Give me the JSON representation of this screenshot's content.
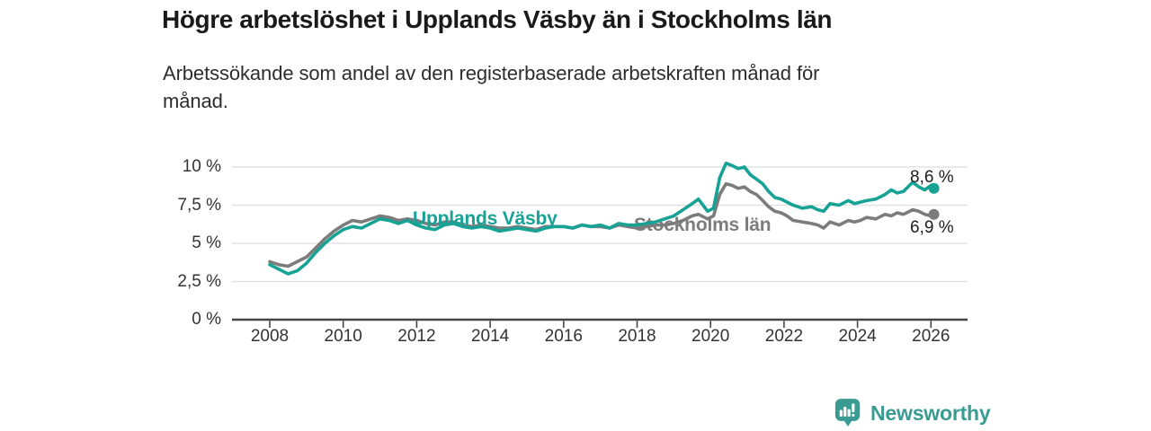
{
  "header": {
    "title": "Högre arbetslöshet i Upplands Väsby än i Stockholms län",
    "subtitle_lines": [
      "Arbetssökande som andel av den registerbaserade arbetskraften månad för",
      "månad."
    ]
  },
  "brand": {
    "name": "Newsworthy",
    "logo_color": "#3a9b93",
    "logo_icon": "bar-chart-speech-bubble"
  },
  "chart_data": {
    "type": "line",
    "title": "Högre arbetslöshet i Upplands Väsby än i Stockholms län",
    "subtitle": "Arbetssökande som andel av den registerbaserade arbetskraften månad för månad.",
    "unit": "%",
    "grid": true,
    "legend": "inline-labels",
    "xlabel": "",
    "ylabel": "",
    "x_range": [
      2007.0,
      2027.0
    ],
    "ylim": [
      0,
      10.6
    ],
    "x_tick_years": [
      2008,
      2010,
      2012,
      2014,
      2016,
      2018,
      2020,
      2022,
      2024,
      2026
    ],
    "x_tick_labels": [
      "2008",
      "2010",
      "2012",
      "2014",
      "2016",
      "2018",
      "2020",
      "2022",
      "2024",
      "2026"
    ],
    "y_tick_values": [
      0,
      2.5,
      5,
      7.5,
      10
    ],
    "y_tick_labels": [
      "0 %",
      "2,5 %",
      "5 %",
      "7,5 %",
      "10 %"
    ],
    "axis_color": "#454545",
    "grid_color": "#dedede",
    "series": [
      {
        "name": "Upplands Väsby",
        "color": "#17a296",
        "end_label": "8,6 %",
        "end_value": 8.6,
        "points": [
          [
            2008.0,
            3.6
          ],
          [
            2008.25,
            3.3
          ],
          [
            2008.5,
            3.0
          ],
          [
            2008.75,
            3.2
          ],
          [
            2009.0,
            3.7
          ],
          [
            2009.25,
            4.4
          ],
          [
            2009.5,
            5.0
          ],
          [
            2009.75,
            5.5
          ],
          [
            2010.0,
            5.9
          ],
          [
            2010.25,
            6.1
          ],
          [
            2010.5,
            6.0
          ],
          [
            2010.75,
            6.3
          ],
          [
            2011.0,
            6.6
          ],
          [
            2011.25,
            6.5
          ],
          [
            2011.5,
            6.3
          ],
          [
            2011.75,
            6.5
          ],
          [
            2012.0,
            6.2
          ],
          [
            2012.25,
            6.0
          ],
          [
            2012.5,
            5.9
          ],
          [
            2012.75,
            6.2
          ],
          [
            2013.0,
            6.3
          ],
          [
            2013.25,
            6.1
          ],
          [
            2013.5,
            6.0
          ],
          [
            2013.75,
            6.1
          ],
          [
            2014.0,
            6.0
          ],
          [
            2014.25,
            5.8
          ],
          [
            2014.5,
            5.9
          ],
          [
            2014.75,
            6.0
          ],
          [
            2015.0,
            5.9
          ],
          [
            2015.25,
            5.8
          ],
          [
            2015.5,
            6.0
          ],
          [
            2015.75,
            6.1
          ],
          [
            2016.0,
            6.1
          ],
          [
            2016.25,
            6.0
          ],
          [
            2016.5,
            6.2
          ],
          [
            2016.75,
            6.1
          ],
          [
            2017.0,
            6.2
          ],
          [
            2017.25,
            6.0
          ],
          [
            2017.5,
            6.3
          ],
          [
            2017.75,
            6.2
          ],
          [
            2018.0,
            6.2
          ],
          [
            2018.25,
            6.3
          ],
          [
            2018.5,
            6.4
          ],
          [
            2018.75,
            6.6
          ],
          [
            2019.0,
            6.8
          ],
          [
            2019.25,
            7.2
          ],
          [
            2019.5,
            7.6
          ],
          [
            2019.67,
            7.9
          ],
          [
            2019.92,
            7.1
          ],
          [
            2020.08,
            7.3
          ],
          [
            2020.25,
            9.3
          ],
          [
            2020.42,
            10.25
          ],
          [
            2020.58,
            10.1
          ],
          [
            2020.75,
            9.9
          ],
          [
            2020.92,
            10.0
          ],
          [
            2021.08,
            9.5
          ],
          [
            2021.25,
            9.2
          ],
          [
            2021.42,
            8.9
          ],
          [
            2021.58,
            8.4
          ],
          [
            2021.75,
            8.0
          ],
          [
            2021.92,
            7.9
          ],
          [
            2022.08,
            7.7
          ],
          [
            2022.25,
            7.5
          ],
          [
            2022.5,
            7.3
          ],
          [
            2022.75,
            7.4
          ],
          [
            2022.92,
            7.2
          ],
          [
            2023.08,
            7.1
          ],
          [
            2023.25,
            7.6
          ],
          [
            2023.5,
            7.5
          ],
          [
            2023.75,
            7.8
          ],
          [
            2023.92,
            7.6
          ],
          [
            2024.08,
            7.7
          ],
          [
            2024.25,
            7.8
          ],
          [
            2024.5,
            7.9
          ],
          [
            2024.75,
            8.2
          ],
          [
            2024.92,
            8.5
          ],
          [
            2025.08,
            8.3
          ],
          [
            2025.25,
            8.4
          ],
          [
            2025.5,
            9.0
          ],
          [
            2025.67,
            8.7
          ],
          [
            2025.83,
            8.5
          ],
          [
            2026.0,
            8.8
          ],
          [
            2026.08,
            8.6
          ]
        ]
      },
      {
        "name": "Stockholms län",
        "color": "#7c7c7c",
        "end_label": "6,9 %",
        "end_value": 6.9,
        "points": [
          [
            2008.0,
            3.8
          ],
          [
            2008.25,
            3.6
          ],
          [
            2008.5,
            3.5
          ],
          [
            2008.75,
            3.8
          ],
          [
            2009.0,
            4.1
          ],
          [
            2009.25,
            4.7
          ],
          [
            2009.5,
            5.3
          ],
          [
            2009.75,
            5.8
          ],
          [
            2010.0,
            6.2
          ],
          [
            2010.25,
            6.5
          ],
          [
            2010.5,
            6.4
          ],
          [
            2010.75,
            6.6
          ],
          [
            2011.0,
            6.8
          ],
          [
            2011.25,
            6.7
          ],
          [
            2011.5,
            6.5
          ],
          [
            2011.75,
            6.6
          ],
          [
            2012.0,
            6.5
          ],
          [
            2012.25,
            6.3
          ],
          [
            2012.5,
            6.2
          ],
          [
            2012.75,
            6.4
          ],
          [
            2013.0,
            6.4
          ],
          [
            2013.25,
            6.2
          ],
          [
            2013.5,
            6.1
          ],
          [
            2013.75,
            6.2
          ],
          [
            2014.0,
            6.1
          ],
          [
            2014.25,
            6.0
          ],
          [
            2014.5,
            6.0
          ],
          [
            2014.75,
            6.1
          ],
          [
            2015.0,
            6.0
          ],
          [
            2015.25,
            5.9
          ],
          [
            2015.5,
            6.1
          ],
          [
            2015.75,
            6.1
          ],
          [
            2016.0,
            6.1
          ],
          [
            2016.25,
            6.0
          ],
          [
            2016.5,
            6.2
          ],
          [
            2016.75,
            6.1
          ],
          [
            2017.0,
            6.1
          ],
          [
            2017.25,
            6.0
          ],
          [
            2017.5,
            6.2
          ],
          [
            2017.75,
            6.1
          ],
          [
            2018.0,
            6.0
          ],
          [
            2018.25,
            6.1
          ],
          [
            2018.5,
            6.2
          ],
          [
            2018.75,
            6.2
          ],
          [
            2019.0,
            6.3
          ],
          [
            2019.25,
            6.5
          ],
          [
            2019.5,
            6.8
          ],
          [
            2019.67,
            6.9
          ],
          [
            2019.92,
            6.6
          ],
          [
            2020.08,
            6.8
          ],
          [
            2020.25,
            8.2
          ],
          [
            2020.42,
            8.9
          ],
          [
            2020.58,
            8.8
          ],
          [
            2020.75,
            8.6
          ],
          [
            2020.92,
            8.7
          ],
          [
            2021.08,
            8.4
          ],
          [
            2021.25,
            8.2
          ],
          [
            2021.42,
            7.8
          ],
          [
            2021.58,
            7.4
          ],
          [
            2021.75,
            7.1
          ],
          [
            2021.92,
            7.0
          ],
          [
            2022.08,
            6.8
          ],
          [
            2022.25,
            6.5
          ],
          [
            2022.5,
            6.4
          ],
          [
            2022.75,
            6.3
          ],
          [
            2022.92,
            6.2
          ],
          [
            2023.08,
            6.0
          ],
          [
            2023.25,
            6.4
          ],
          [
            2023.5,
            6.2
          ],
          [
            2023.75,
            6.5
          ],
          [
            2023.92,
            6.4
          ],
          [
            2024.08,
            6.5
          ],
          [
            2024.25,
            6.7
          ],
          [
            2024.5,
            6.6
          ],
          [
            2024.75,
            6.9
          ],
          [
            2024.92,
            6.8
          ],
          [
            2025.08,
            7.0
          ],
          [
            2025.25,
            6.9
          ],
          [
            2025.5,
            7.2
          ],
          [
            2025.67,
            7.1
          ],
          [
            2025.83,
            6.9
          ],
          [
            2026.0,
            6.8
          ],
          [
            2026.08,
            6.9
          ]
        ]
      }
    ]
  }
}
